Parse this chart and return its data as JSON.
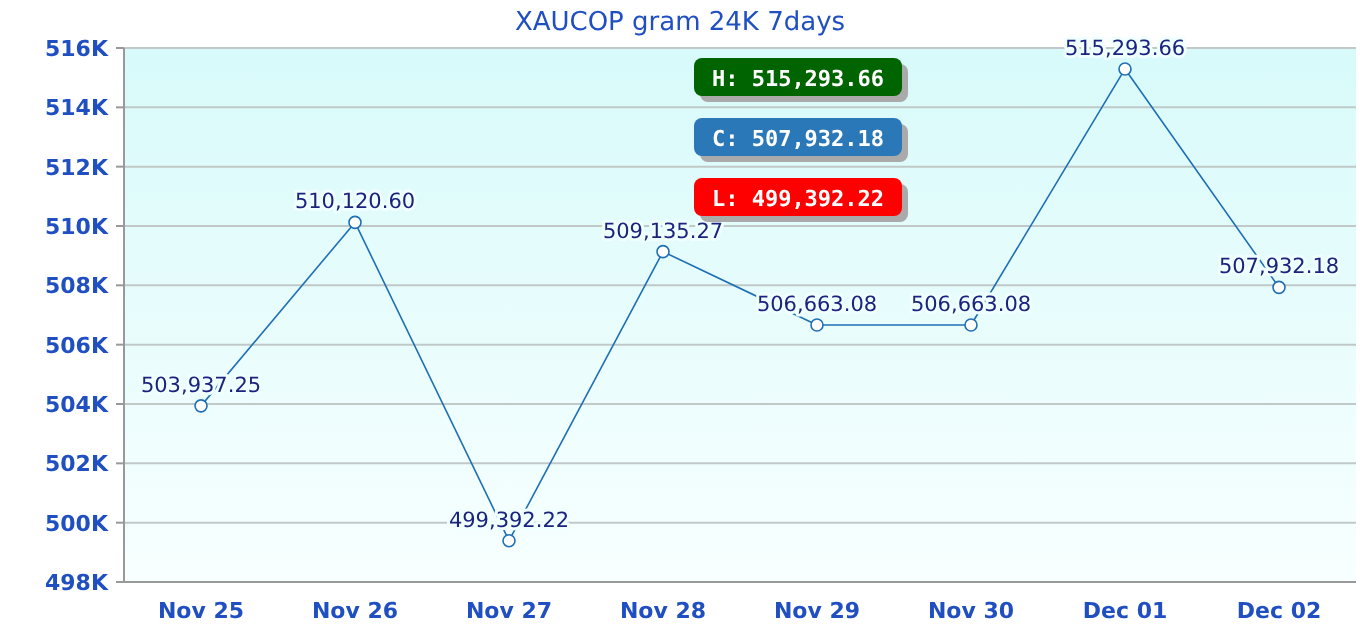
{
  "chart_data": {
    "type": "line",
    "title": "XAUCOP gram 24K 7days",
    "categories": [
      "Nov 25",
      "Nov 26",
      "Nov 27",
      "Nov 28",
      "Nov 29",
      "Nov 30",
      "Dec 01",
      "Dec 02"
    ],
    "series": [
      {
        "color": "#1f6fb5",
        "values": [
          503937.25,
          510120.6,
          499392.22,
          509135.27,
          506663.08,
          506663.08,
          515293.66,
          507932.18
        ],
        "value_labels": [
          "503,937.25",
          "510,120.60",
          "499,392.22",
          "509,135.27",
          "506,663.08",
          "506,663.08",
          "515,293.66",
          "507,932.18"
        ]
      }
    ],
    "ylim": [
      498000,
      516000
    ],
    "yticks": [
      {
        "value": 498000,
        "label": "498K"
      },
      {
        "value": 500000,
        "label": "500K"
      },
      {
        "value": 502000,
        "label": "502K"
      },
      {
        "value": 504000,
        "label": "504K"
      },
      {
        "value": 506000,
        "label": "506K"
      },
      {
        "value": 508000,
        "label": "508K"
      },
      {
        "value": 510000,
        "label": "510K"
      },
      {
        "value": 512000,
        "label": "512K"
      },
      {
        "value": 514000,
        "label": "514K"
      },
      {
        "value": 516000,
        "label": "516K"
      }
    ],
    "grid": "y",
    "marker": "circle",
    "line_style": "solid",
    "annotations": [
      "H: 515,293.66",
      "C: 507,932.18",
      "L: 499,392.22"
    ]
  }
}
